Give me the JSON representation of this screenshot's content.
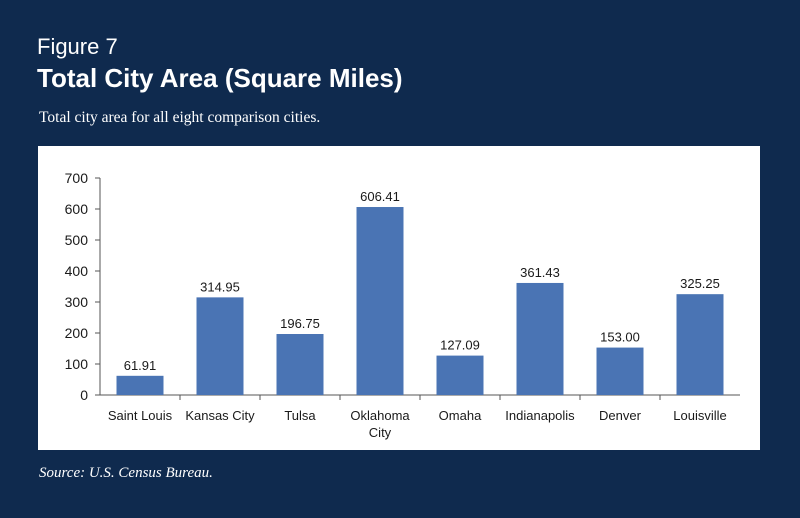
{
  "figure_label": "Figure 7",
  "source": "Source: U.S. Census Bureau.",
  "colors": {
    "background": "#0f2a4e",
    "bar": "#4a74b4",
    "panel": "#ffffff"
  },
  "chart_data": {
    "type": "bar",
    "title": "Total City Area (Square Miles)",
    "subtitle": "Total city area for all eight comparison cities.",
    "categories": [
      "Saint Louis",
      "Kansas City",
      "Tulsa",
      "Oklahoma City",
      "Omaha",
      "Indianapolis",
      "Denver",
      "Louisville"
    ],
    "category_lines": [
      [
        "Saint Louis"
      ],
      [
        "Kansas City"
      ],
      [
        "Tulsa"
      ],
      [
        "Oklahoma",
        "City"
      ],
      [
        "Omaha"
      ],
      [
        "Indianapolis"
      ],
      [
        "Denver"
      ],
      [
        "Louisville"
      ]
    ],
    "values": [
      61.91,
      314.95,
      196.75,
      606.41,
      127.09,
      361.43,
      153.0,
      325.25
    ],
    "value_labels": [
      "61.91",
      "314.95",
      "196.75",
      "606.41",
      "127.09",
      "361.43",
      "153.00",
      "325.25"
    ],
    "ylim": [
      0,
      700
    ],
    "yticks": [
      0,
      100,
      200,
      300,
      400,
      500,
      600,
      700
    ],
    "xlabel": "",
    "ylabel": "",
    "grid": false,
    "legend": "none"
  }
}
